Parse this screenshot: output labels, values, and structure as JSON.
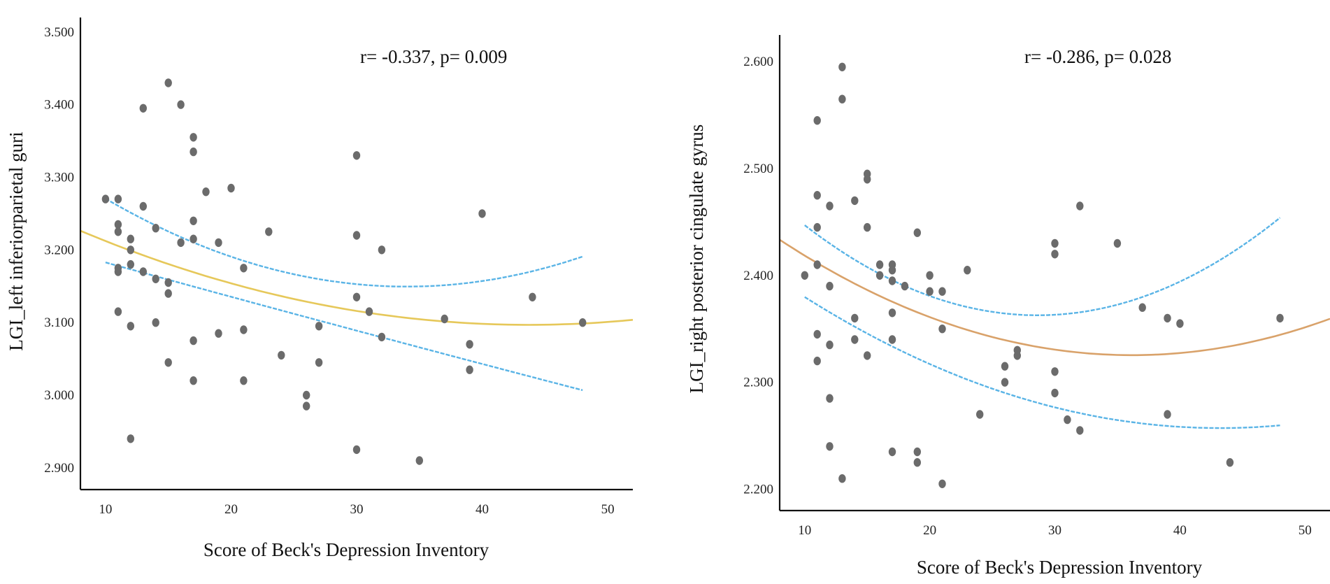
{
  "chart_data": [
    {
      "type": "scatter",
      "title": "",
      "annotation": "r= -0.337, p= 0.009",
      "xlabel": "Score of Beck's Depression Inventory",
      "ylabel": "LGI_left inferiorparietal guri",
      "xlim": [
        8,
        52
      ],
      "ylim": [
        2.87,
        3.52
      ],
      "xticks": [
        10,
        20,
        30,
        40,
        50
      ],
      "xtick_labels": [
        "10",
        "20",
        "30",
        "40",
        "50"
      ],
      "yticks": [
        2.9,
        3.0,
        3.1,
        3.2,
        3.3,
        3.4,
        3.5
      ],
      "ytick_labels": [
        "2.900",
        "3.000",
        "3.100",
        "3.200",
        "3.300",
        "3.400",
        "3.500"
      ],
      "fit_color": "#e6c85a",
      "ci_color": "#5ab4e6",
      "point_color": "#6b6b6b",
      "fit": {
        "x0": 8,
        "x1": 52,
        "a": 3.2908,
        "b": -0.00887,
        "c": 0.0001014
      },
      "ci_upper": {
        "x0": 10,
        "x1": 48,
        "a": 3.3928,
        "b": -0.01432,
        "c": 0.0002107
      },
      "ci_lower": {
        "x0": 10,
        "x1": 48,
        "a": 3.2308,
        "b": -0.00484,
        "c": 3.62e-06
      },
      "points": [
        {
          "x": 10,
          "y": 3.27
        },
        {
          "x": 11,
          "y": 3.27
        },
        {
          "x": 11,
          "y": 3.235
        },
        {
          "x": 11,
          "y": 3.225
        },
        {
          "x": 11,
          "y": 3.175
        },
        {
          "x": 11,
          "y": 3.17
        },
        {
          "x": 11,
          "y": 3.115
        },
        {
          "x": 12,
          "y": 3.215
        },
        {
          "x": 12,
          "y": 3.2
        },
        {
          "x": 12,
          "y": 3.18
        },
        {
          "x": 12,
          "y": 3.095
        },
        {
          "x": 12,
          "y": 2.94
        },
        {
          "x": 13,
          "y": 3.395
        },
        {
          "x": 13,
          "y": 3.26
        },
        {
          "x": 13,
          "y": 3.17
        },
        {
          "x": 14,
          "y": 3.23
        },
        {
          "x": 14,
          "y": 3.16
        },
        {
          "x": 14,
          "y": 3.1
        },
        {
          "x": 15,
          "y": 3.43
        },
        {
          "x": 15,
          "y": 3.155
        },
        {
          "x": 15,
          "y": 3.14
        },
        {
          "x": 15,
          "y": 3.045
        },
        {
          "x": 16,
          "y": 3.4
        },
        {
          "x": 16,
          "y": 3.21
        },
        {
          "x": 17,
          "y": 3.355
        },
        {
          "x": 17,
          "y": 3.335
        },
        {
          "x": 17,
          "y": 3.24
        },
        {
          "x": 17,
          "y": 3.215
        },
        {
          "x": 17,
          "y": 3.075
        },
        {
          "x": 17,
          "y": 3.02
        },
        {
          "x": 18,
          "y": 3.28
        },
        {
          "x": 19,
          "y": 3.21
        },
        {
          "x": 19,
          "y": 3.085
        },
        {
          "x": 20,
          "y": 3.285
        },
        {
          "x": 21,
          "y": 3.175
        },
        {
          "x": 21,
          "y": 3.09
        },
        {
          "x": 21,
          "y": 3.02
        },
        {
          "x": 23,
          "y": 3.225
        },
        {
          "x": 24,
          "y": 3.055
        },
        {
          "x": 26,
          "y": 3.0
        },
        {
          "x": 26,
          "y": 2.985
        },
        {
          "x": 27,
          "y": 3.095
        },
        {
          "x": 27,
          "y": 3.045
        },
        {
          "x": 30,
          "y": 3.33
        },
        {
          "x": 30,
          "y": 3.22
        },
        {
          "x": 30,
          "y": 3.135
        },
        {
          "x": 30,
          "y": 2.925
        },
        {
          "x": 31,
          "y": 3.115
        },
        {
          "x": 32,
          "y": 3.2
        },
        {
          "x": 32,
          "y": 3.08
        },
        {
          "x": 35,
          "y": 2.91
        },
        {
          "x": 37,
          "y": 3.105
        },
        {
          "x": 39,
          "y": 3.07
        },
        {
          "x": 39,
          "y": 3.035
        },
        {
          "x": 40,
          "y": 3.25
        },
        {
          "x": 44,
          "y": 3.135
        },
        {
          "x": 48,
          "y": 3.1
        }
      ]
    },
    {
      "type": "scatter",
      "title": "",
      "annotation": "r= -0.286, p= 0.028",
      "xlabel": "Score of Beck's Depression Inventory",
      "ylabel": "LGI_right posterior cingulate gyrus",
      "xlim": [
        8,
        52
      ],
      "ylim": [
        2.18,
        2.625
      ],
      "xticks": [
        10,
        20,
        30,
        40,
        50
      ],
      "xtick_labels": [
        "10",
        "20",
        "30",
        "40",
        "50"
      ],
      "yticks": [
        2.2,
        2.3,
        2.4,
        2.5,
        2.6
      ],
      "ytick_labels": [
        "2.200",
        "2.300",
        "2.400",
        "2.500",
        "2.600"
      ],
      "fit_color": "#d9a26a",
      "ci_color": "#5ab4e6",
      "point_color": "#6b6b6b",
      "fit": {
        "x0": 8,
        "x1": 52,
        "a": 2.5034,
        "b": -0.00984,
        "c": 0.000136
      },
      "ci_upper": {
        "x0": 10,
        "x1": 48,
        "a": 2.5618,
        "b": -0.01391,
        "c": 0.000243
      },
      "ci_lower": {
        "x0": 10,
        "x1": 48,
        "a": 2.4648,
        "b": -0.00961,
        "c": 0.0001112
      },
      "points": [
        {
          "x": 10,
          "y": 2.4
        },
        {
          "x": 11,
          "y": 2.545
        },
        {
          "x": 11,
          "y": 2.475
        },
        {
          "x": 11,
          "y": 2.445
        },
        {
          "x": 11,
          "y": 2.41
        },
        {
          "x": 11,
          "y": 2.345
        },
        {
          "x": 11,
          "y": 2.32
        },
        {
          "x": 12,
          "y": 2.465
        },
        {
          "x": 12,
          "y": 2.39
        },
        {
          "x": 12,
          "y": 2.335
        },
        {
          "x": 12,
          "y": 2.285
        },
        {
          "x": 12,
          "y": 2.24
        },
        {
          "x": 13,
          "y": 2.595
        },
        {
          "x": 13,
          "y": 2.565
        },
        {
          "x": 13,
          "y": 2.21
        },
        {
          "x": 14,
          "y": 2.47
        },
        {
          "x": 14,
          "y": 2.36
        },
        {
          "x": 14,
          "y": 2.34
        },
        {
          "x": 15,
          "y": 2.495
        },
        {
          "x": 15,
          "y": 2.49
        },
        {
          "x": 15,
          "y": 2.445
        },
        {
          "x": 15,
          "y": 2.325
        },
        {
          "x": 16,
          "y": 2.41
        },
        {
          "x": 16,
          "y": 2.4
        },
        {
          "x": 17,
          "y": 2.41
        },
        {
          "x": 17,
          "y": 2.405
        },
        {
          "x": 17,
          "y": 2.395
        },
        {
          "x": 17,
          "y": 2.365
        },
        {
          "x": 17,
          "y": 2.34
        },
        {
          "x": 17,
          "y": 2.235
        },
        {
          "x": 18,
          "y": 2.39
        },
        {
          "x": 19,
          "y": 2.44
        },
        {
          "x": 19,
          "y": 2.235
        },
        {
          "x": 19,
          "y": 2.225
        },
        {
          "x": 20,
          "y": 2.4
        },
        {
          "x": 20,
          "y": 2.385
        },
        {
          "x": 21,
          "y": 2.385
        },
        {
          "x": 21,
          "y": 2.35
        },
        {
          "x": 21,
          "y": 2.205
        },
        {
          "x": 23,
          "y": 2.405
        },
        {
          "x": 24,
          "y": 2.27
        },
        {
          "x": 26,
          "y": 2.315
        },
        {
          "x": 26,
          "y": 2.3
        },
        {
          "x": 27,
          "y": 2.33
        },
        {
          "x": 27,
          "y": 2.325
        },
        {
          "x": 30,
          "y": 2.43
        },
        {
          "x": 30,
          "y": 2.42
        },
        {
          "x": 30,
          "y": 2.31
        },
        {
          "x": 30,
          "y": 2.29
        },
        {
          "x": 31,
          "y": 2.265
        },
        {
          "x": 32,
          "y": 2.465
        },
        {
          "x": 32,
          "y": 2.255
        },
        {
          "x": 35,
          "y": 2.43
        },
        {
          "x": 37,
          "y": 2.37
        },
        {
          "x": 39,
          "y": 2.36
        },
        {
          "x": 39,
          "y": 2.27
        },
        {
          "x": 40,
          "y": 2.355
        },
        {
          "x": 44,
          "y": 2.225
        },
        {
          "x": 48,
          "y": 2.36
        }
      ]
    }
  ]
}
